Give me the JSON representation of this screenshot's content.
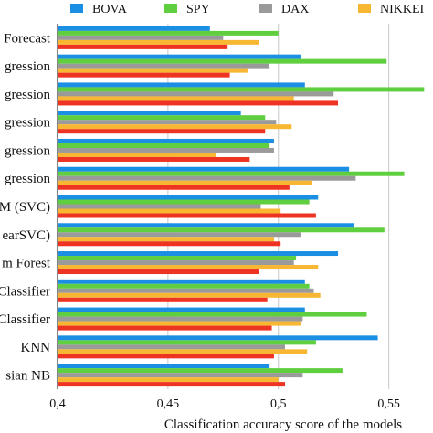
{
  "chart_data": {
    "type": "bar",
    "orientation": "horizontal",
    "title": "",
    "xlabel": "Classification accuracy score of the models",
    "ylabel": "",
    "xlim": [
      0.4,
      0.57
    ],
    "xticks": [
      0.4,
      0.45,
      0.5,
      0.55
    ],
    "xtick_labels": [
      "0,4",
      "0,45",
      "0,5",
      "0,55"
    ],
    "grid": "vertical",
    "legend_position": "top",
    "categories": [
      "Forecast",
      "gression",
      "gression",
      "gression",
      "gression",
      "gression",
      "M (SVC)",
      "earSVC)",
      "m Forest",
      "Classifier",
      "Classifier",
      "KNN",
      "sian NB"
    ],
    "series": [
      {
        "name": "BOVA",
        "color": "#1a8fe3",
        "values": [
          0.469,
          0.51,
          0.512,
          0.483,
          0.498,
          0.532,
          0.518,
          0.534,
          0.527,
          0.512,
          0.512,
          0.545,
          0.496
        ]
      },
      {
        "name": "SPY",
        "color": "#5fce3f",
        "values": [
          0.5,
          0.549,
          0.566,
          0.494,
          0.496,
          0.557,
          0.514,
          0.548,
          0.508,
          0.514,
          0.54,
          0.517,
          0.529
        ]
      },
      {
        "name": "DAX",
        "color": "#9a9a9a",
        "values": [
          0.475,
          0.496,
          0.525,
          0.499,
          0.498,
          0.535,
          0.492,
          0.51,
          0.507,
          0.516,
          0.511,
          0.503,
          0.511
        ]
      },
      {
        "name": "NIKKEI",
        "color": "#f7b733",
        "values": [
          0.491,
          0.486,
          0.507,
          0.506,
          0.472,
          0.515,
          0.501,
          0.498,
          0.518,
          0.519,
          0.51,
          0.513,
          0.5
        ]
      },
      {
        "name": "",
        "color": "#ee3322",
        "values": [
          0.477,
          0.478,
          0.527,
          0.494,
          0.487,
          0.505,
          0.517,
          0.501,
          0.491,
          0.495,
          0.497,
          0.498,
          0.503
        ]
      }
    ]
  }
}
